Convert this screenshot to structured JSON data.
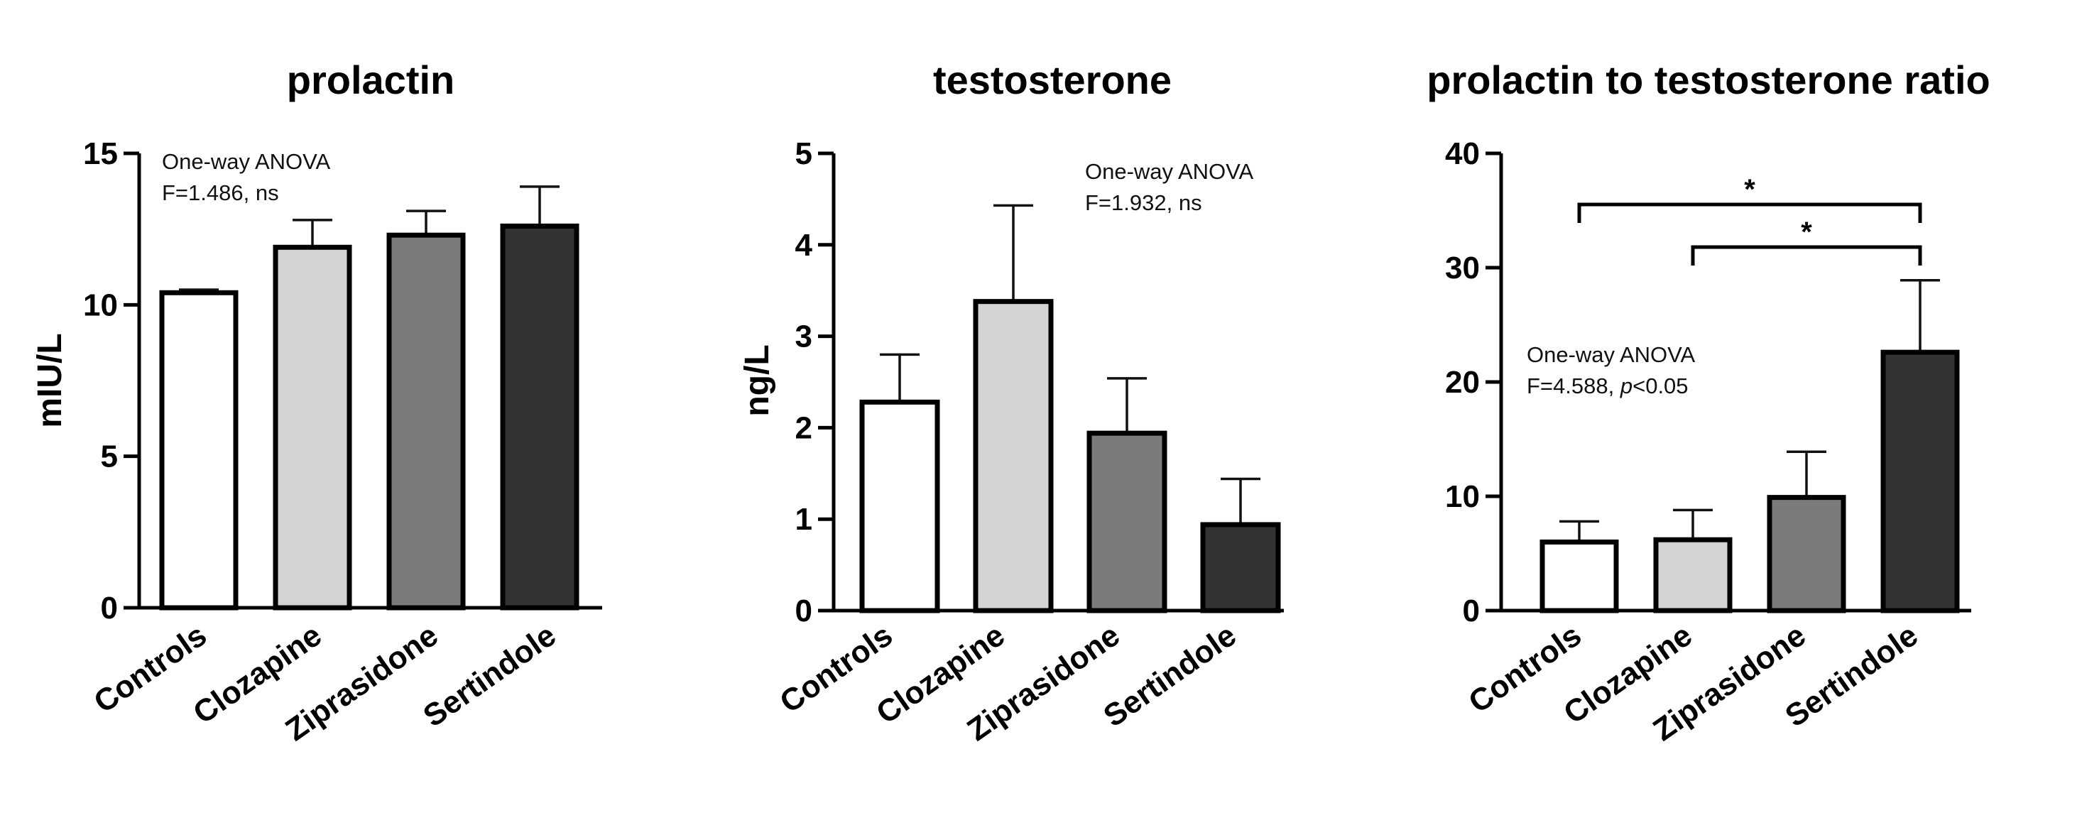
{
  "chart_data": [
    {
      "type": "bar",
      "title": "prolactin",
      "xlabel": "",
      "ylabel": "mIU/L",
      "ylim": [
        0,
        15
      ],
      "yticks": [
        0,
        5,
        10,
        15
      ],
      "categories": [
        "Controls",
        "Clozapine",
        "Ziprasidone",
        "Sertindole"
      ],
      "values": [
        10.4,
        11.9,
        12.3,
        12.6
      ],
      "errors": [
        0.1,
        0.9,
        0.8,
        1.3
      ],
      "bar_colors": [
        "#ffffff",
        "#d4d4d4",
        "#7b7b7b",
        "#333333"
      ],
      "annotation": [
        "One-way ANOVA",
        "F=1.486, ns"
      ],
      "significance": []
    },
    {
      "type": "bar",
      "title": "testosterone",
      "xlabel": "",
      "ylabel": "ng/L",
      "ylim": [
        0,
        5
      ],
      "yticks": [
        0,
        1,
        2,
        3,
        4,
        5
      ],
      "categories": [
        "Controls",
        "Clozapine",
        "Ziprasidone",
        "Sertindole"
      ],
      "values": [
        2.28,
        3.38,
        1.94,
        0.94
      ],
      "errors": [
        0.52,
        1.05,
        0.6,
        0.5
      ],
      "bar_colors": [
        "#ffffff",
        "#d4d4d4",
        "#7b7b7b",
        "#333333"
      ],
      "annotation": [
        "One-way ANOVA",
        "F=1.932, ns"
      ],
      "significance": []
    },
    {
      "type": "bar",
      "title": "prolactin to testosterone ratio",
      "xlabel": "",
      "ylabel": "",
      "ylim": [
        0,
        40
      ],
      "yticks": [
        0,
        10,
        20,
        30,
        40
      ],
      "categories": [
        "Controls",
        "Clozapine",
        "Ziprasidone",
        "Sertindole"
      ],
      "values": [
        6.0,
        6.2,
        9.9,
        22.6
      ],
      "errors": [
        1.8,
        2.6,
        4.0,
        6.3
      ],
      "bar_colors": [
        "#ffffff",
        "#d4d4d4",
        "#7b7b7b",
        "#333333"
      ],
      "annotation": [
        "One-way ANOVA",
        "F=4.588, ",
        "p",
        "<0.05"
      ],
      "significance": [
        {
          "from": "Controls",
          "to": "Sertindole",
          "label": "*"
        },
        {
          "from": "Clozapine",
          "to": "Sertindole",
          "label": "*"
        }
      ]
    }
  ]
}
